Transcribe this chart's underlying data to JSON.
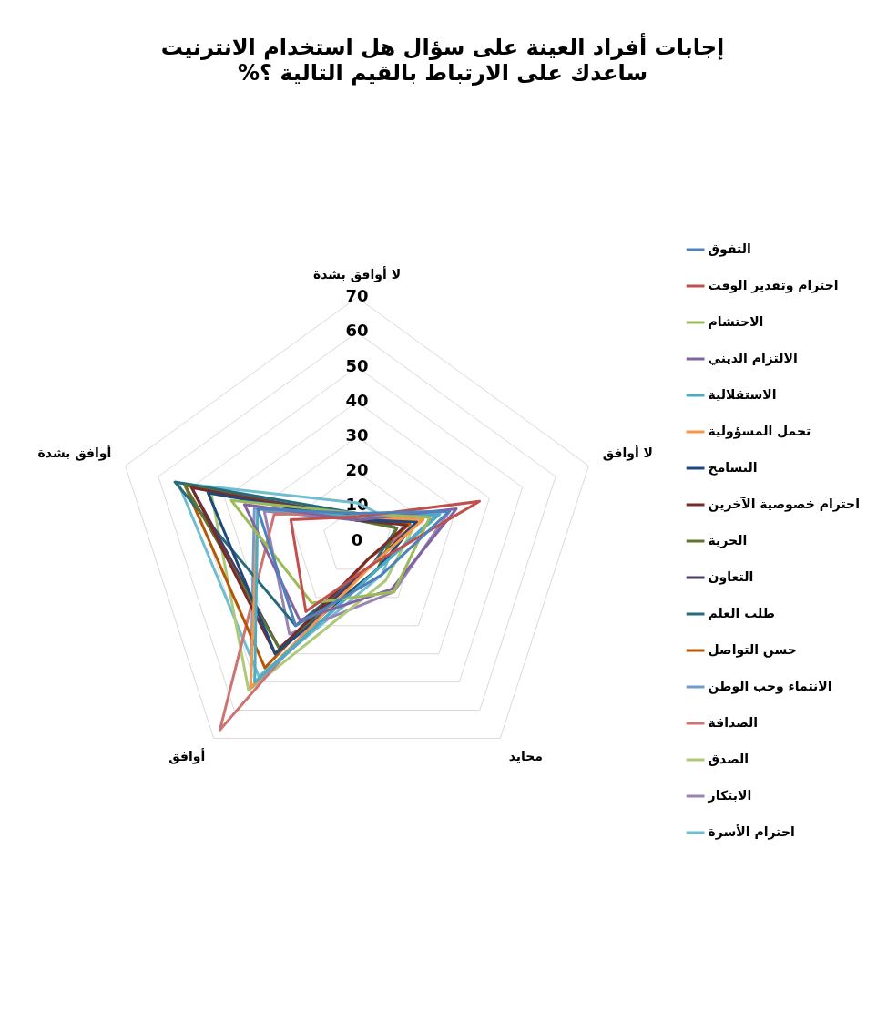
{
  "chart_data": {
    "type": "radar",
    "title": "إجابات أفراد العينة على سؤال هل استخدام الانترنيت ساعدك على الارتباط بالقيم التالية ؟%",
    "categories": [
      "لا أوافق بشدة",
      "لا أوافق",
      "محايد",
      "أوافق",
      "أوافق بشدة"
    ],
    "ylim": [
      0,
      70
    ],
    "yticks": [
      0,
      10,
      20,
      30,
      40,
      50,
      60,
      70
    ],
    "grid": true,
    "legend": "right",
    "series": [
      {
        "name": "التفوق",
        "color": "#4f81bd",
        "values": [
          8,
          28,
          12,
          30,
          30
        ]
      },
      {
        "name": "احترام وتقدير الوقت",
        "color": "#c0504d",
        "values": [
          7,
          37,
          8,
          25,
          20
        ]
      },
      {
        "name": "الاحتشام",
        "color": "#9bbb59",
        "values": [
          8,
          22,
          18,
          22,
          38
        ]
      },
      {
        "name": "الالتزام الديني",
        "color": "#8064a2",
        "values": [
          6,
          30,
          17,
          28,
          34
        ]
      },
      {
        "name": "الاستقلالية",
        "color": "#4bacc6",
        "values": [
          7,
          25,
          10,
          50,
          30
        ]
      },
      {
        "name": "تحمل المسؤولية",
        "color": "#f79646",
        "values": [
          7,
          20,
          8,
          52,
          30
        ]
      },
      {
        "name": "التسامح",
        "color": "#1f497d",
        "values": [
          6,
          18,
          10,
          40,
          45
        ]
      },
      {
        "name": "احترام خصوصية الآخرين",
        "color": "#772c2a",
        "values": [
          6,
          15,
          6,
          40,
          50
        ]
      },
      {
        "name": "الحرية",
        "color": "#5f7530",
        "values": [
          6,
          12,
          10,
          38,
          52
        ]
      },
      {
        "name": "التعاون",
        "color": "#4d3b62",
        "values": [
          7,
          18,
          8,
          38,
          50
        ]
      },
      {
        "name": "طلب العلم",
        "color": "#276a7c",
        "values": [
          8,
          12,
          8,
          30,
          55
        ]
      },
      {
        "name": "حسن التواصل",
        "color": "#b65708",
        "values": [
          7,
          16,
          6,
          45,
          52
        ]
      },
      {
        "name": "الانتماء وحب الوطن",
        "color": "#729aca",
        "values": [
          8,
          24,
          10,
          52,
          31
        ]
      },
      {
        "name": "الصداقة",
        "color": "#cd7371",
        "values": [
          8,
          20,
          6,
          67,
          25
        ]
      },
      {
        "name": "الصدق",
        "color": "#afc97a",
        "values": [
          8,
          18,
          14,
          53,
          44
        ]
      },
      {
        "name": "الابتكار",
        "color": "#9983b5",
        "values": [
          6,
          28,
          18,
          33,
          28
        ]
      },
      {
        "name": "احترام الأسرة",
        "color": "#6fbdd1",
        "values": [
          11,
          14,
          12,
          48,
          54
        ]
      }
    ]
  }
}
